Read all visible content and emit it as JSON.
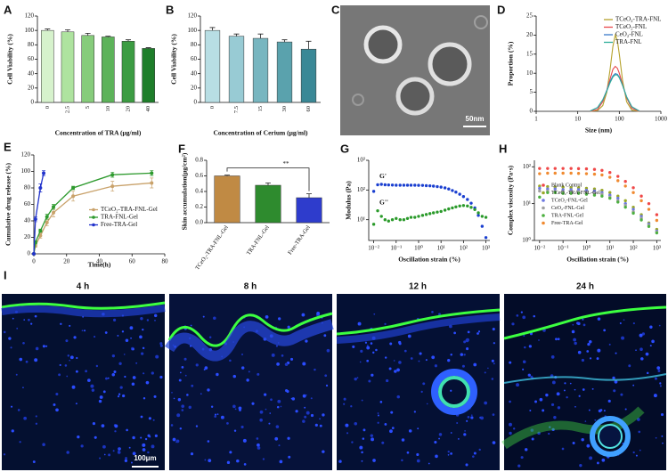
{
  "chart_data": [
    {
      "panel": "A",
      "type": "bar",
      "categories": [
        "0",
        "2.5",
        "5",
        "10",
        "20",
        "40"
      ],
      "values": [
        100,
        98,
        93,
        91,
        85,
        75
      ],
      "errors": [
        2,
        3,
        3,
        1,
        2,
        1
      ],
      "colors": [
        "#d6f2cc",
        "#aee39f",
        "#86cc7b",
        "#5db35a",
        "#3c9c42",
        "#1e7e2a"
      ],
      "ylim": [
        0,
        120
      ],
      "yticks": [
        0,
        20,
        40,
        60,
        80,
        100,
        120
      ],
      "ylabel": "Cell Viability (%)",
      "xlabel": "Concentration of TRA (μg/ml)"
    },
    {
      "panel": "B",
      "type": "bar",
      "categories": [
        "0",
        "7.5",
        "15",
        "30",
        "60"
      ],
      "values": [
        100,
        92,
        89,
        84,
        74
      ],
      "errors": [
        4,
        3,
        6,
        3,
        11
      ],
      "colors": [
        "#b8dee4",
        "#98cbd4",
        "#78b6c0",
        "#5aa2ad",
        "#3a8896"
      ],
      "ylim": [
        0,
        120
      ],
      "yticks": [
        0,
        20,
        40,
        60,
        80,
        100,
        120
      ],
      "ylabel": "Cell Viability (%)",
      "xlabel": "Concentration of Cerium (μg/ml)"
    },
    {
      "panel": "D",
      "type": "line",
      "xscale": "log",
      "legend": "upper right",
      "x": [
        20,
        30,
        40,
        50,
        60,
        70,
        80,
        90,
        100,
        120,
        150,
        200,
        300
      ],
      "series": [
        {
          "name": "TCeO₂-TRA-FNL",
          "color": "#b5a22c",
          "values": [
            0,
            0.2,
            1.5,
            5,
            11,
            17,
            20,
            18.5,
            15,
            8,
            2.5,
            0.3,
            0
          ]
        },
        {
          "name": "TCeO₂-FNL",
          "color": "#e8474b",
          "values": [
            0,
            0.5,
            2.5,
            5.5,
            8.5,
            11,
            11.8,
            11.3,
            10,
            7,
            3.5,
            0.8,
            0
          ]
        },
        {
          "name": "CeO₂-FNL",
          "color": "#3a78c8",
          "values": [
            0.1,
            1,
            3,
            5.5,
            7.8,
            9.3,
            9.9,
            9.7,
            9,
            6.8,
            3.8,
            1.2,
            0.1
          ]
        },
        {
          "name": "TRA-FNL",
          "color": "#2fae9a",
          "values": [
            0.1,
            1,
            3,
            5.3,
            7.5,
            9,
            9.6,
            9.5,
            8.8,
            6.8,
            3.8,
            1.2,
            0.1
          ]
        }
      ],
      "xlim": [
        1,
        1000
      ],
      "xticks": [
        1,
        10,
        100,
        1000
      ],
      "ylim": [
        0,
        25
      ],
      "yticks": [
        0,
        5,
        10,
        15,
        20,
        25
      ],
      "ylabel": "Proportion (%)",
      "xlabel": "Size (nm)"
    },
    {
      "panel": "E",
      "type": "line",
      "markers": true,
      "legend": "center right",
      "series": [
        {
          "name": "TCeO₂-TRA-FNL-Gel",
          "color": "#c9a26b",
          "x": [
            0,
            1,
            4,
            8,
            12,
            24,
            48,
            72
          ],
          "values": [
            0,
            10,
            22,
            38,
            50,
            70,
            82,
            86
          ],
          "errors": [
            0,
            2,
            3,
            4,
            5,
            6,
            6,
            6
          ]
        },
        {
          "name": "TRA-FNL-Gel",
          "color": "#2e9a2e",
          "x": [
            0,
            1,
            4,
            8,
            12,
            24,
            48,
            72
          ],
          "values": [
            0,
            14,
            28,
            45,
            57,
            80,
            96,
            98
          ],
          "errors": [
            0,
            2,
            2,
            3,
            3,
            2,
            3,
            3
          ]
        },
        {
          "name": "Free-TRA-Gel",
          "color": "#2233cc",
          "x": [
            0,
            1,
            4,
            6
          ],
          "values": [
            0,
            42,
            80,
            98
          ],
          "errors": [
            0,
            3,
            5,
            3
          ]
        }
      ],
      "xlim": [
        0,
        80
      ],
      "xticks": [
        0,
        20,
        40,
        60,
        80
      ],
      "ylim": [
        0,
        120
      ],
      "yticks": [
        0,
        20,
        40,
        60,
        80,
        100,
        120
      ],
      "ylabel": "Cumulative drug release (%)",
      "xlabel": "Time(h)"
    },
    {
      "panel": "F",
      "type": "bar",
      "categories": [
        "TCeO₂-TRA-FNL-Gel",
        "TRA-FNL-Gel",
        "Free-TRA-Gel"
      ],
      "values": [
        0.6,
        0.48,
        0.32
      ],
      "errors": [
        0.01,
        0.03,
        0.05
      ],
      "colors": [
        "#c08a44",
        "#2e8b2e",
        "#2e3ccc"
      ],
      "annotation": "**",
      "ylim": [
        0,
        0.8
      ],
      "yticks": [
        {
          "value": 0,
          "label": "0.0"
        },
        0.2,
        0.4,
        0.6,
        0.8
      ],
      "ylabel": "Skin accumulation(μg/cm²)"
    },
    {
      "panel": "G",
      "type": "scatter",
      "xscale": "log",
      "yscale": "log",
      "legend": "inline",
      "x": [
        0.01,
        0.015,
        0.022,
        0.032,
        0.046,
        0.068,
        0.1,
        0.15,
        0.22,
        0.32,
        0.46,
        0.68,
        1,
        1.5,
        2.2,
        3.2,
        4.6,
        6.8,
        10,
        15,
        22,
        32,
        46,
        68,
        100,
        150,
        220,
        320,
        460,
        680,
        1000
      ],
      "series": [
        {
          "name": "G'",
          "color": "#1a3fd0",
          "values": [
            90,
            150,
            155,
            150,
            148,
            147,
            145,
            145,
            145,
            145,
            145,
            145,
            144,
            143,
            140,
            138,
            135,
            130,
            125,
            118,
            108,
            96,
            85,
            72,
            60,
            48,
            36,
            25,
            14,
            6,
            2.5
          ]
        },
        {
          "name": "G''",
          "color": "#2a9a2a",
          "values": [
            7,
            20,
            13,
            10,
            9,
            10,
            11,
            10,
            10,
            11,
            12,
            12,
            13,
            14,
            15,
            16,
            17,
            18,
            19,
            21,
            23,
            25,
            27,
            29,
            30,
            29,
            26,
            22,
            17,
            13,
            12
          ]
        }
      ],
      "xlim": [
        0.006,
        1500
      ],
      "xticks": [
        {
          "value": 0.01,
          "label": "10⁻²"
        },
        {
          "value": 0.1,
          "label": "10⁻¹"
        },
        {
          "value": 1,
          "label": "10⁰"
        },
        {
          "value": 10,
          "label": "10¹"
        },
        {
          "value": 100,
          "label": "10²"
        },
        {
          "value": 1000,
          "label": "10³"
        }
      ],
      "ylim": [
        2,
        1000
      ],
      "yticks": [
        {
          "value": 10,
          "label": "10¹"
        },
        {
          "value": 100,
          "label": "10²"
        },
        {
          "value": 1000,
          "label": "10³"
        }
      ],
      "ylabel": "Modulus (Pa)",
      "xlabel": "Oscillation strain (%)"
    },
    {
      "panel": "H",
      "type": "scatter",
      "xscale": "log",
      "yscale": "log",
      "legend": "lower left",
      "x": [
        0.01,
        0.022,
        0.046,
        0.1,
        0.22,
        0.46,
        1,
        2.2,
        4.6,
        10,
        22,
        46,
        100,
        220,
        460,
        1000
      ],
      "series": [
        {
          "name": "Blank Control",
          "color": "#f04848",
          "values": [
            90,
            90,
            90,
            90,
            90,
            89,
            88,
            85,
            80,
            70,
            55,
            40,
            27,
            16,
            10,
            5
          ]
        },
        {
          "name": "TCeO₂-TRA-FNL-Gel",
          "color": "#9aa828",
          "values": [
            30,
            29,
            28,
            28,
            27,
            27,
            26,
            25,
            23,
            20,
            16,
            12,
            8,
            5,
            3,
            2
          ]
        },
        {
          "name": "TCeO₂-FNL-Gel",
          "color": "#6c78e0",
          "values": [
            26,
            25,
            25,
            24,
            24,
            24,
            23,
            22,
            20,
            17,
            14,
            10,
            7,
            4.5,
            2.8,
            1.8
          ]
        },
        {
          "name": "CeO₂-FNL-Gel",
          "color": "#a0a0a0",
          "values": [
            22,
            22,
            21,
            21,
            21,
            21,
            20,
            19,
            18,
            15,
            12,
            9,
            6,
            4,
            2.6,
            1.7
          ]
        },
        {
          "name": "TRA-FNL-Gel",
          "color": "#4cb040",
          "values": [
            15,
            20,
            20,
            19,
            19,
            19,
            18,
            17,
            16,
            14,
            11,
            8,
            5.5,
            3.6,
            2.4,
            1.6
          ]
        },
        {
          "name": "Free-TRA-Gel",
          "color": "#f08a30",
          "values": [
            65,
            67,
            67,
            67,
            67,
            66,
            65,
            63,
            60,
            52,
            42,
            30,
            20,
            12,
            7,
            3.5
          ]
        }
      ],
      "xlim": [
        0.006,
        1500
      ],
      "xticks": [
        {
          "value": 0.01,
          "label": "10⁻²"
        },
        {
          "value": 0.1,
          "label": "10⁻¹"
        },
        {
          "value": 1,
          "label": "10⁰"
        },
        {
          "value": 10,
          "label": "10¹"
        },
        {
          "value": 100,
          "label": "10²"
        },
        {
          "value": 1000,
          "label": "10³"
        }
      ],
      "ylim": [
        1,
        150
      ],
      "yticks": [
        {
          "value": 1,
          "label": "10⁰"
        },
        {
          "value": 10,
          "label": "10¹"
        },
        {
          "value": 100,
          "label": "10²"
        }
      ],
      "ylabel": "Complex viscosity (Pa·s)",
      "xlabel": "Oscillation strain (%)"
    }
  ],
  "image_panels": [
    {
      "panel": "C",
      "scale_bar": "50nm"
    },
    {
      "panel": "I",
      "time_labels": [
        "4 h",
        "8 h",
        "12 h",
        "24 h"
      ],
      "scale_bar": "100μm"
    }
  ]
}
